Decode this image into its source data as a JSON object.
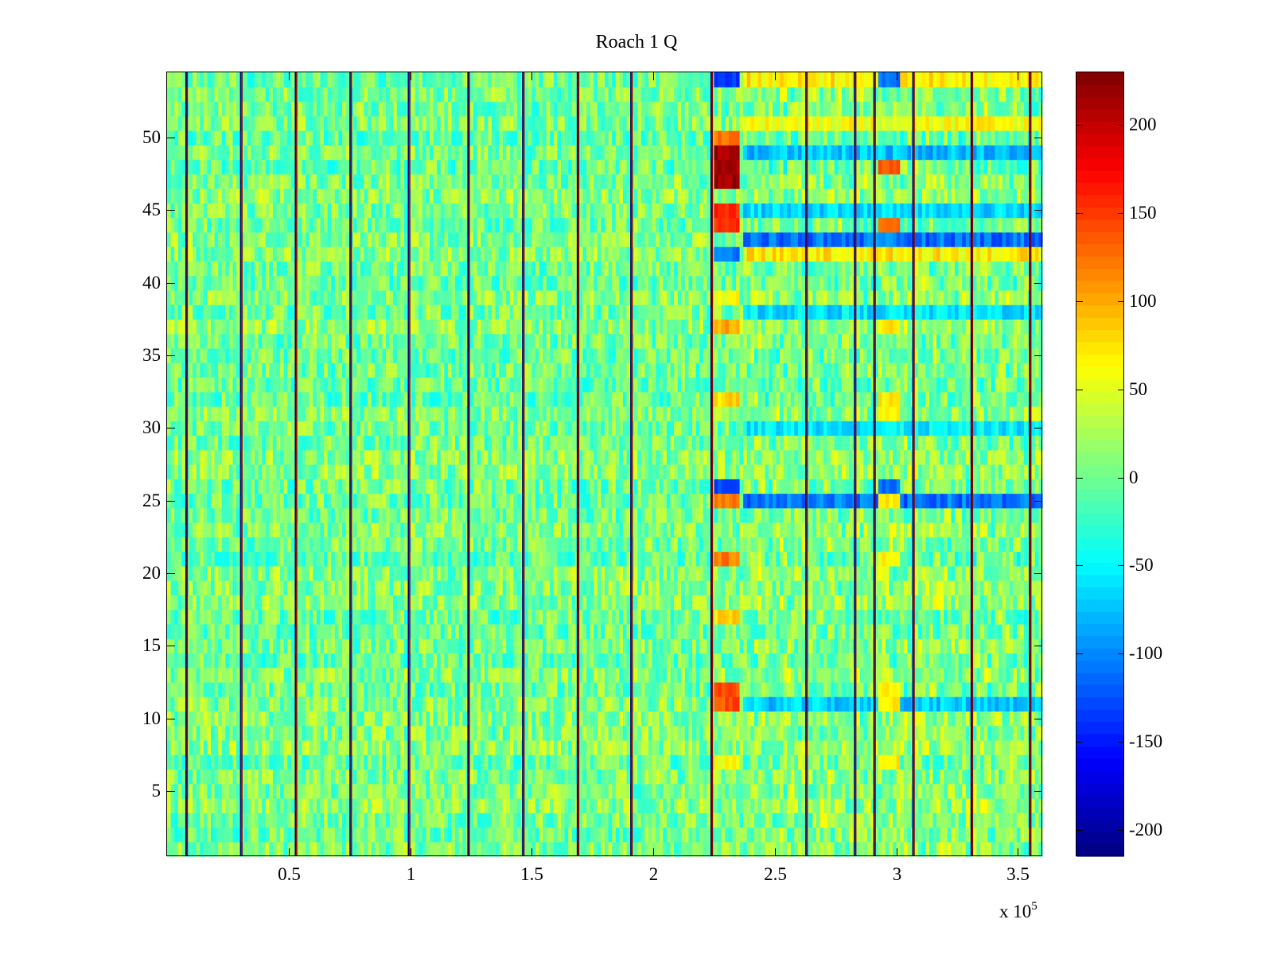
{
  "chart_data": {
    "type": "heatmap",
    "title": "Roach 1 Q",
    "xlabel": "",
    "ylabel": "",
    "xlim": [
      0,
      360000
    ],
    "ylim": [
      0.5,
      54.5
    ],
    "x_multiplier_label": "x 10",
    "x_multiplier_exponent": "5",
    "xticks": [
      {
        "value": 0.5,
        "label": "0.5"
      },
      {
        "value": 1,
        "label": "1"
      },
      {
        "value": 1.5,
        "label": "1.5"
      },
      {
        "value": 2,
        "label": "2"
      },
      {
        "value": 2.5,
        "label": "2.5"
      },
      {
        "value": 3,
        "label": "3"
      },
      {
        "value": 3.5,
        "label": "3.5"
      }
    ],
    "yticks": [
      {
        "value": 5,
        "label": "5"
      },
      {
        "value": 10,
        "label": "10"
      },
      {
        "value": 15,
        "label": "15"
      },
      {
        "value": 20,
        "label": "20"
      },
      {
        "value": 25,
        "label": "25"
      },
      {
        "value": 30,
        "label": "30"
      },
      {
        "value": 35,
        "label": "35"
      },
      {
        "value": 40,
        "label": "40"
      },
      {
        "value": 45,
        "label": "45"
      },
      {
        "value": 50,
        "label": "50"
      }
    ],
    "colorbar": {
      "colormap": "jet",
      "clim": [
        -215,
        230
      ],
      "ticks": [
        {
          "value": -200,
          "label": "-200"
        },
        {
          "value": -150,
          "label": "-150"
        },
        {
          "value": -100,
          "label": "-100"
        },
        {
          "value": -50,
          "label": "-50"
        },
        {
          "value": 0,
          "label": "0"
        },
        {
          "value": 50,
          "label": "50"
        },
        {
          "value": 100,
          "label": "100"
        },
        {
          "value": 150,
          "label": "150"
        },
        {
          "value": 200,
          "label": "200"
        }
      ]
    },
    "rows": 54,
    "background_value_range": [
      -40,
      45
    ],
    "vertical_stripes": [
      {
        "x": 8000,
        "top": -215,
        "bottom": 220
      },
      {
        "x": 30500,
        "top": -215,
        "bottom": 220
      },
      {
        "x": 53000,
        "top": -215,
        "bottom": 220
      },
      {
        "x": 75500,
        "top": -215,
        "bottom": 220
      },
      {
        "x": 99500,
        "top": -215,
        "bottom": 220
      },
      {
        "x": 124000,
        "top": -215,
        "bottom": 220
      },
      {
        "x": 146500,
        "top": -215,
        "bottom": 220
      },
      {
        "x": 169000,
        "top": -215,
        "bottom": 220
      },
      {
        "x": 191000,
        "top": -215,
        "bottom": 220
      },
      {
        "x": 224000,
        "top": -215,
        "bottom": 220
      },
      {
        "x": 263000,
        "top": -215,
        "bottom": 220
      },
      {
        "x": 283000,
        "top": -215,
        "bottom": 220
      },
      {
        "x": 291000,
        "top": -215,
        "bottom": 220
      },
      {
        "x": 307000,
        "top": -215,
        "bottom": 220
      },
      {
        "x": 331000,
        "top": -215,
        "bottom": 220
      },
      {
        "x": 355000,
        "top": -215,
        "bottom": 220
      }
    ],
    "hotspots": [
      {
        "x_range": [
          225000,
          235000
        ],
        "rows": [
          47,
          48,
          49
        ],
        "value": 215
      },
      {
        "x_range": [
          225000,
          235000
        ],
        "rows": [
          44,
          45
        ],
        "value": 160
      },
      {
        "x_range": [
          225000,
          235000
        ],
        "rows": [
          50
        ],
        "value": 120
      },
      {
        "x_range": [
          225000,
          235000
        ],
        "rows": [
          11,
          12
        ],
        "value": 140
      },
      {
        "x_range": [
          225000,
          235000
        ],
        "rows": [
          21
        ],
        "value": 120
      },
      {
        "x_range": [
          225000,
          235000
        ],
        "rows": [
          25
        ],
        "value": 120
      },
      {
        "x_range": [
          225000,
          235000
        ],
        "rows": [
          37
        ],
        "value": 100
      },
      {
        "x_range": [
          225000,
          235000
        ],
        "rows": [
          32
        ],
        "value": 80
      },
      {
        "x_range": [
          225000,
          235000
        ],
        "rows": [
          17
        ],
        "value": 80
      },
      {
        "x_range": [
          225000,
          235000
        ],
        "rows": [
          39
        ],
        "value": 60
      },
      {
        "x_range": [
          225000,
          235000
        ],
        "rows": [
          7
        ],
        "value": 60
      },
      {
        "x_range": [
          225000,
          235000
        ],
        "rows": [
          26,
          54
        ],
        "value": -130
      },
      {
        "x_range": [
          225000,
          235000
        ],
        "rows": [
          42
        ],
        "value": -110
      },
      {
        "x_range": [
          293000,
          301000
        ],
        "rows": [
          48
        ],
        "value": 130
      },
      {
        "x_range": [
          293000,
          301000
        ],
        "rows": [
          44
        ],
        "value": 120
      },
      {
        "x_range": [
          293000,
          301000
        ],
        "rows": [
          25,
          11,
          12,
          37,
          21,
          31,
          32,
          7
        ],
        "value": 70
      },
      {
        "x_range": [
          293000,
          301000
        ],
        "rows": [
          54,
          26
        ],
        "value": -110
      }
    ],
    "row_bands_after_x": 237000,
    "row_bands": [
      {
        "row": 43,
        "value": -110
      },
      {
        "row": 25,
        "value": -110
      },
      {
        "row": 42,
        "value": 70
      },
      {
        "row": 49,
        "value": -75
      },
      {
        "row": 45,
        "value": -65
      },
      {
        "row": 11,
        "value": -70
      },
      {
        "row": 38,
        "value": -60
      },
      {
        "row": 30,
        "value": -55
      },
      {
        "row": 51,
        "value": 60
      },
      {
        "row": 54,
        "value": 70
      }
    ]
  }
}
